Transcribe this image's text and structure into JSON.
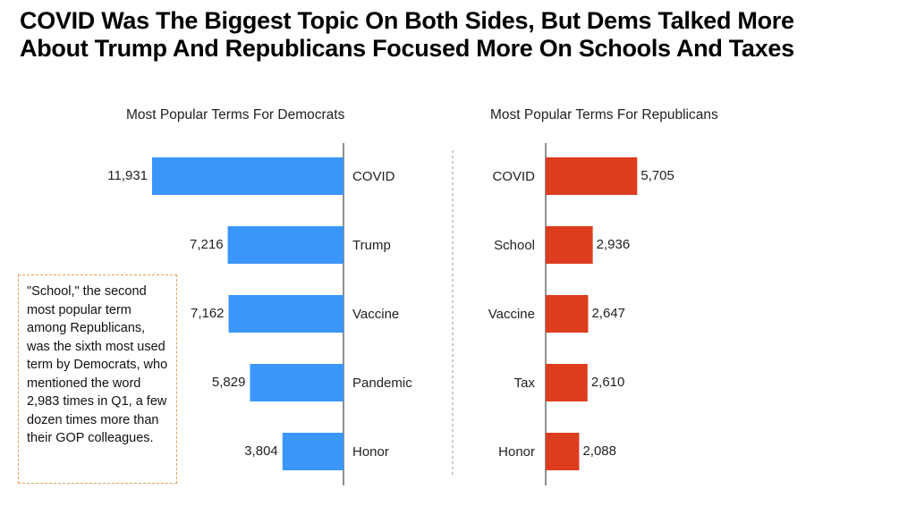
{
  "title_line1": "COVID Was The Biggest Topic On Both Sides, But Dems Talked More",
  "title_line2": "About Trump And Republicans Focused More On Schools And Taxes",
  "annotation": "\"School,\" the second most popular term among Republicans, was the sixth most used term by Democrats, who mentioned the word 2,983 times in Q1, a few dozen times more than their GOP colleagues.",
  "colors": {
    "democrats": "#3b96fb",
    "republicans": "#dc3d1f",
    "axis": "#222222",
    "divider": "#999999",
    "note_border": "#e8a05a"
  },
  "chart_data": [
    {
      "type": "bar",
      "orientation": "horizontal",
      "title": "Most Popular Terms For Democrats",
      "categories": [
        "COVID",
        "Trump",
        "Vaccine",
        "Pandemic",
        "Honor"
      ],
      "values": [
        11931,
        7216,
        7162,
        5829,
        3804
      ],
      "value_labels": [
        "11,931",
        "7,216",
        "7,162",
        "5,829",
        "3,804"
      ],
      "direction": "leftward",
      "color": "#3b96fb",
      "grid": false
    },
    {
      "type": "bar",
      "orientation": "horizontal",
      "title": "Most Popular Terms For Republicans",
      "categories": [
        "COVID",
        "School",
        "Vaccine",
        "Tax",
        "Honor"
      ],
      "values": [
        5705,
        2936,
        2647,
        2610,
        2088
      ],
      "value_labels": [
        "5,705",
        "2,936",
        "2,647",
        "2,610",
        "2,088"
      ],
      "direction": "rightward",
      "color": "#dc3d1f",
      "grid": false
    }
  ]
}
